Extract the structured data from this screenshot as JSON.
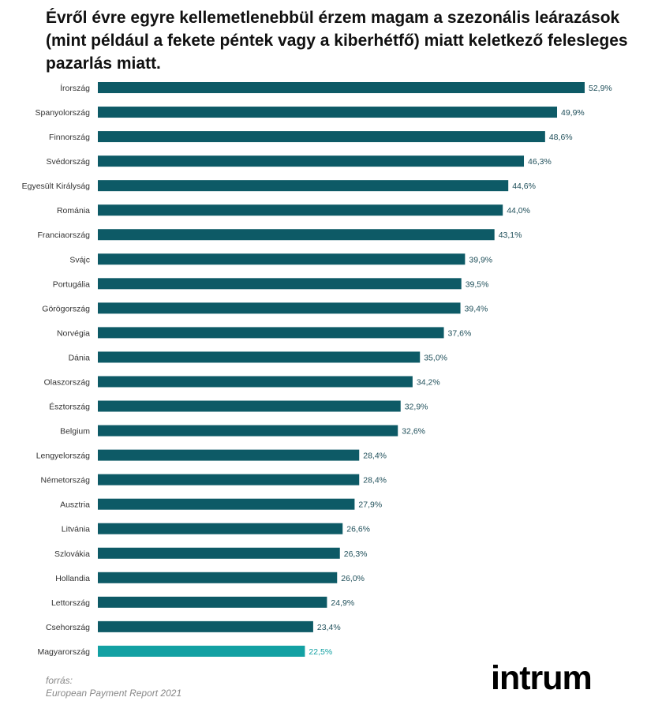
{
  "title": "Évről évre egyre kellemetlenebbül érzem magam a szezonális leárazások (mint például a fekete péntek vagy a kiberhétfő) miatt keletkező felesleges pazarlás miatt.",
  "source": {
    "label": "forrás:",
    "text": "European Payment Report 2021"
  },
  "logo": "intrum",
  "colors": {
    "bar": "#0d5a66",
    "highlight": "#13a1a3",
    "label_default": "#1f4f5a",
    "label_highlight": "#13a1a3"
  },
  "chart_data": {
    "type": "bar",
    "orientation": "horizontal",
    "categories": [
      "Írország",
      "Spanyolország",
      "Finnország",
      "Svédország",
      "Egyesült Királyság",
      "Románia",
      "Franciaország",
      "Svájc",
      "Portugália",
      "Görögország",
      "Norvégia",
      "Dánia",
      "Olaszország",
      "Észtország",
      "Belgium",
      "Lengyelország",
      "Németország",
      "Ausztria",
      "Litvánia",
      "Szlovákia",
      "Hollandia",
      "Lettország",
      "Csehország",
      "Magyarország"
    ],
    "values": [
      52.9,
      49.9,
      48.6,
      46.3,
      44.6,
      44.0,
      43.1,
      39.9,
      39.5,
      39.4,
      37.6,
      35.0,
      34.2,
      32.9,
      32.6,
      28.4,
      28.4,
      27.9,
      26.6,
      26.3,
      26.0,
      24.9,
      23.4,
      22.5
    ],
    "value_labels": [
      "52,9%",
      "49,9%",
      "48,6%",
      "46,3%",
      "44,6%",
      "44,0%",
      "43,1%",
      "39,9%",
      "39,5%",
      "39,4%",
      "37,6%",
      "35,0%",
      "34,2%",
      "32,9%",
      "32,6%",
      "28,4%",
      "28,4%",
      "27,9%",
      "26,6%",
      "26,3%",
      "26,0%",
      "24,9%",
      "23,4%",
      "22,5%"
    ],
    "highlight_category": "Magyarország",
    "xlim": [
      0,
      52.9
    ],
    "grid": false,
    "legend": "none"
  }
}
